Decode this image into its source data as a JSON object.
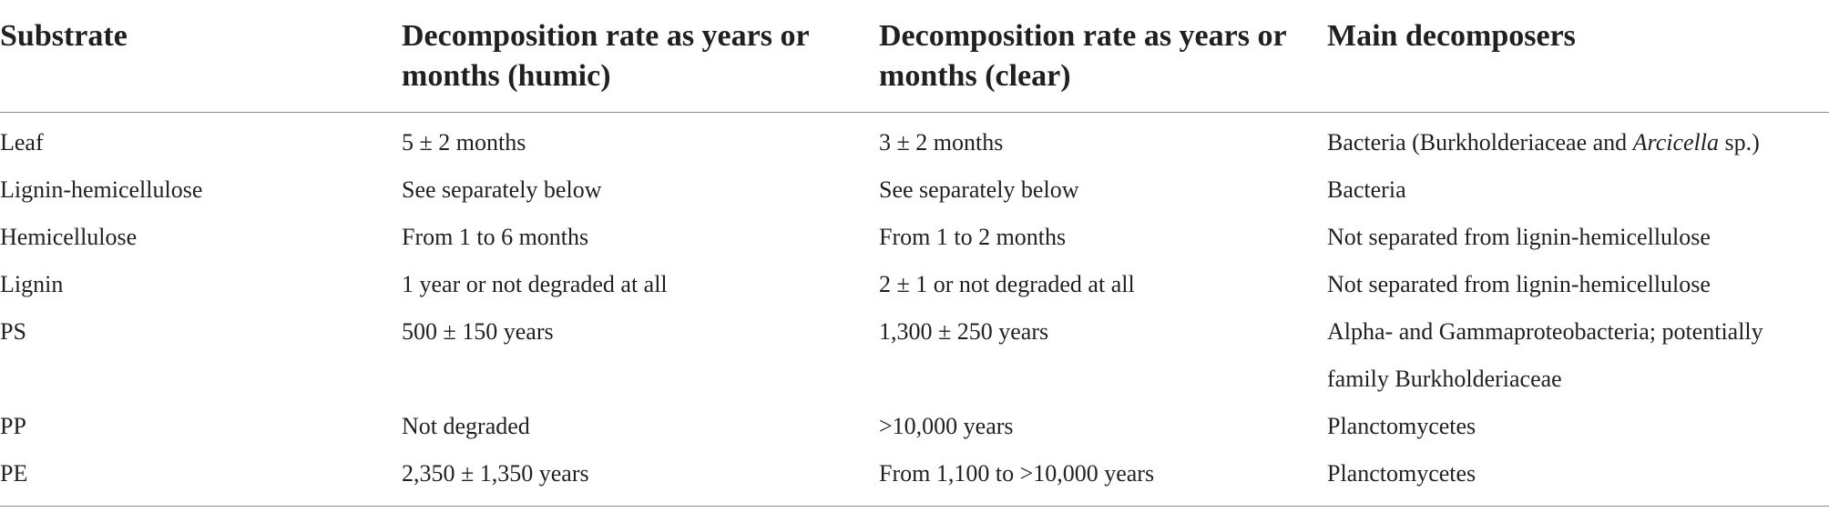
{
  "table": {
    "headers": [
      "Substrate",
      "Decomposition rate as years or months (humic)",
      "Decomposition rate as years or months (clear)",
      "Main decomposers"
    ],
    "rows": [
      {
        "substrate": "Leaf",
        "humic": "5 ± 2 months",
        "clear": "3 ± 2 months",
        "decomposers_prefix": "Bacteria (Burkholderiaceae and ",
        "decomposers_italic": "Arcicella",
        "decomposers_suffix": " sp.)"
      },
      {
        "substrate": "Lignin-hemicellulose",
        "humic": "See separately below",
        "clear": "See separately below",
        "decomposers": "Bacteria"
      },
      {
        "substrate": "Hemicellulose",
        "humic": "From 1 to 6 months",
        "clear": "From 1 to 2 months",
        "decomposers": "Not separated from lignin-hemicellulose"
      },
      {
        "substrate": "Lignin",
        "humic": "1 year or not degraded at all",
        "clear": "2 ± 1 or not degraded at all",
        "decomposers": "Not separated from lignin-hemicellulose"
      },
      {
        "substrate": "PS",
        "humic": "500 ± 150 years",
        "clear": "1,300 ± 250 years",
        "decomposers": "Alpha- and Gammaproteobacteria; potentially family Burkholderiaceae"
      },
      {
        "substrate": "PP",
        "humic": "Not degraded",
        "clear": ">10,000 years",
        "decomposers": "Planctomycetes"
      },
      {
        "substrate": "PE",
        "humic": "2,350 ± 1,350 years",
        "clear": "From 1,100 to >10,000 years",
        "decomposers": "Planctomycetes"
      }
    ]
  }
}
